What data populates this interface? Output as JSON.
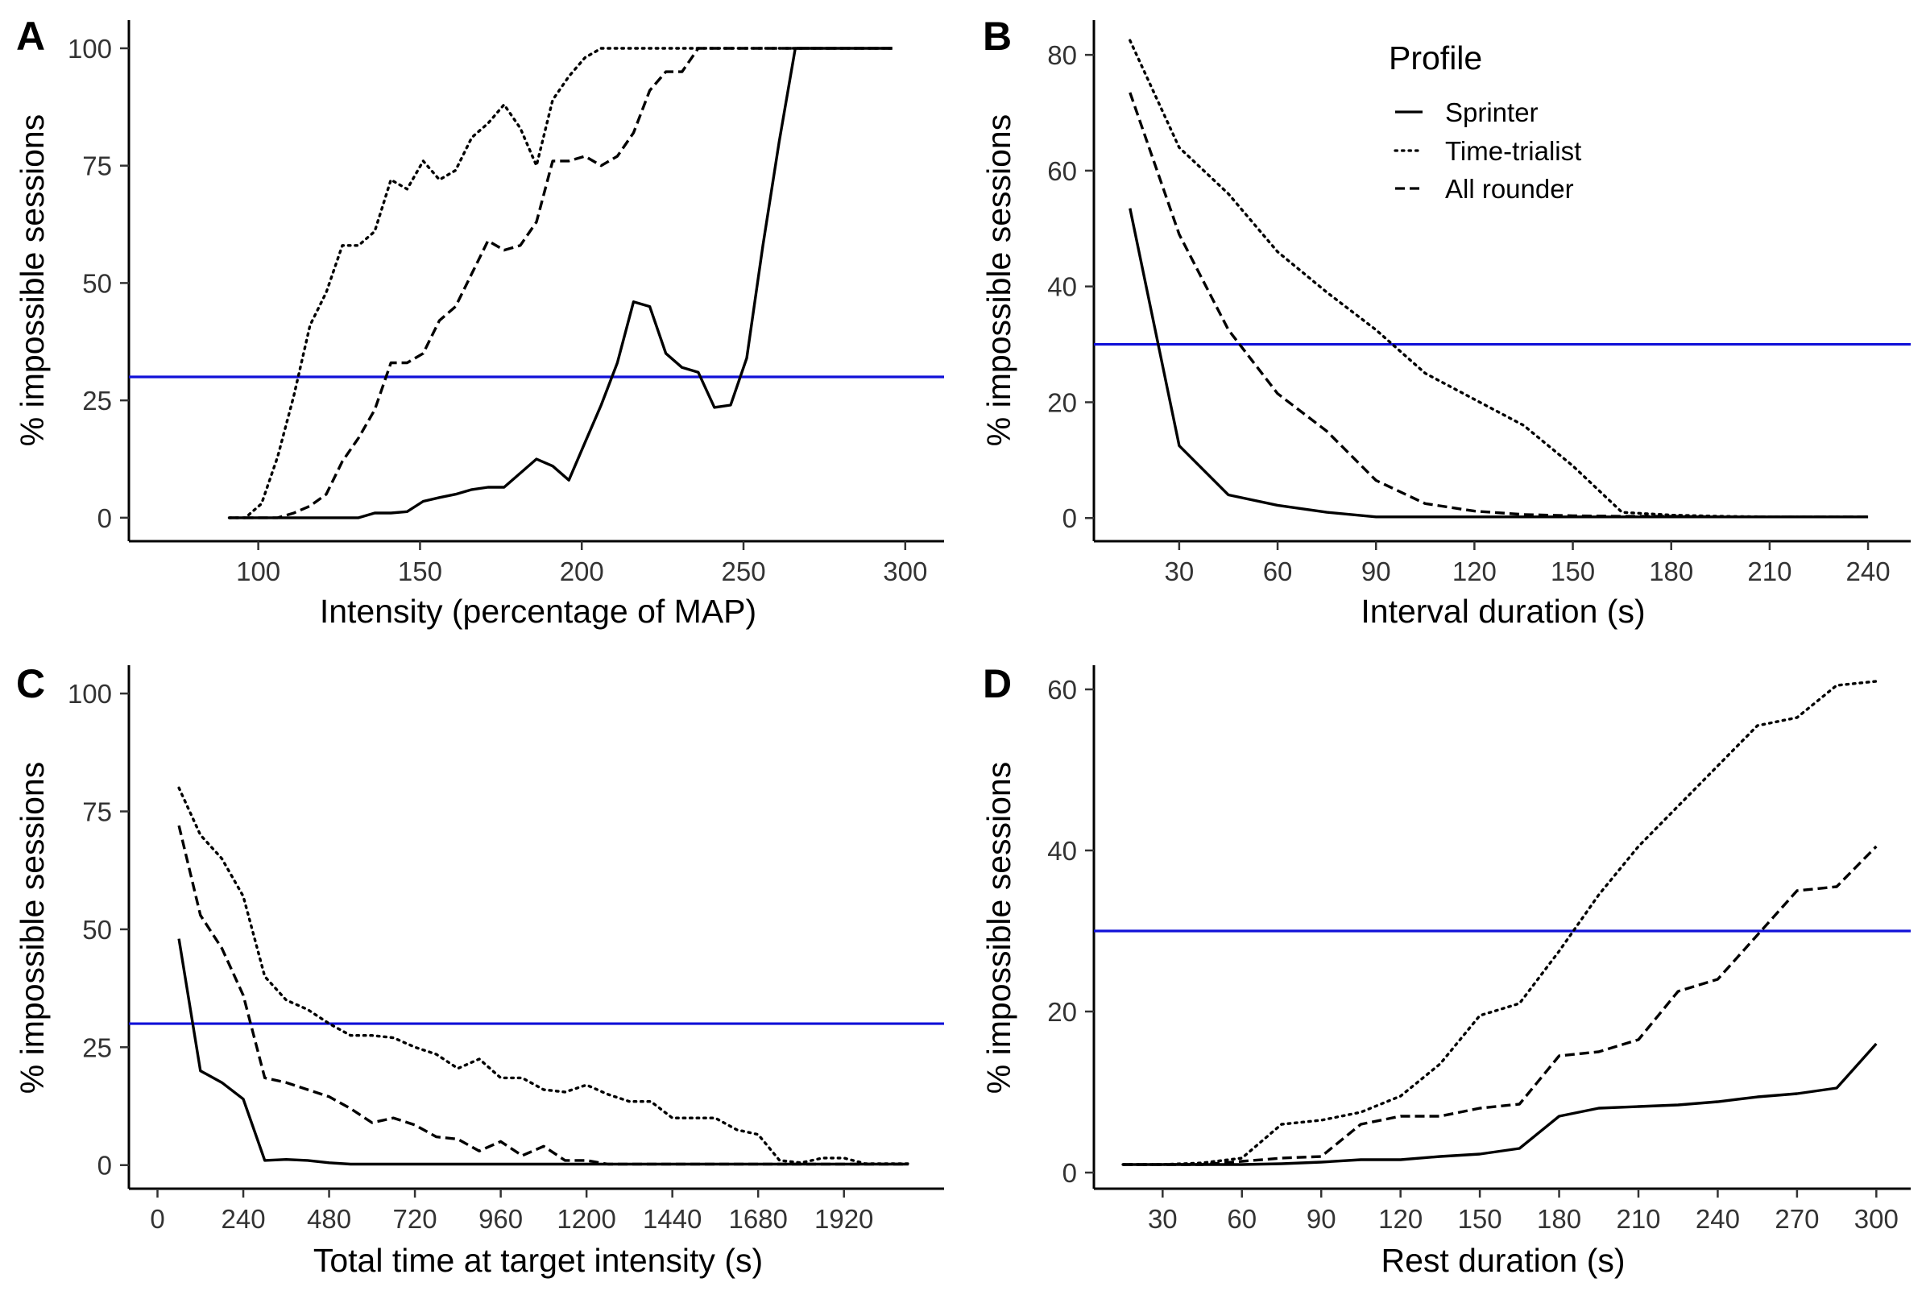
{
  "legend": {
    "title": "Profile",
    "entries": [
      {
        "label": "Sprinter",
        "dash": "solid"
      },
      {
        "label": "Time-trialist",
        "dash": "dotted"
      },
      {
        "label": "All rounder",
        "dash": "dashed"
      }
    ],
    "placement": "inside panel B, top-right"
  },
  "colors": {
    "threshold": "#1010d8",
    "series": "#000000"
  },
  "chart_data": [
    {
      "id": "A",
      "type": "line",
      "panel_label": "A",
      "xlabel": "Intensity (percentage of MAP)",
      "ylabel": "% impossible sessions",
      "xlim": [
        60,
        312
      ],
      "ylim": [
        -5,
        106
      ],
      "xticks": [
        100,
        150,
        200,
        250,
        300
      ],
      "yticks": [
        0,
        25,
        50,
        75,
        100
      ],
      "threshold": 30,
      "series": [
        {
          "name": "Sprinter",
          "dash": "solid",
          "x": [
            91,
            96,
            101,
            106,
            111,
            116,
            121,
            126,
            131,
            136,
            141,
            146,
            151,
            156,
            161,
            166,
            171,
            176,
            181,
            186,
            191,
            196,
            201,
            206,
            211,
            216,
            221,
            226,
            231,
            236,
            241,
            246,
            251,
            256,
            261,
            266,
            271,
            276,
            281,
            286,
            291,
            296
          ],
          "y": [
            0,
            0,
            0,
            0,
            0,
            0,
            0,
            0,
            0,
            1,
            1,
            1.3,
            3.5,
            4.3,
            5,
            6,
            6.5,
            6.5,
            9.5,
            12.5,
            11,
            8,
            16,
            24,
            33,
            46,
            45,
            35,
            32,
            31,
            23.5,
            24,
            34,
            58,
            80,
            100,
            100,
            100,
            100,
            100,
            100,
            100
          ]
        },
        {
          "name": "Time-trialist",
          "dash": "dotted",
          "x": [
            91,
            96,
            101,
            106,
            111,
            116,
            121,
            126,
            131,
            136,
            141,
            146,
            151,
            156,
            161,
            166,
            171,
            176,
            181,
            186,
            191,
            196,
            201,
            206,
            211,
            216,
            221,
            226,
            231,
            236,
            241,
            246,
            251,
            256,
            261,
            266,
            271,
            276,
            281,
            286,
            291,
            296
          ],
          "y": [
            0,
            0,
            3,
            13,
            26,
            41,
            48,
            58,
            58,
            61,
            72,
            70,
            76,
            72,
            74,
            81,
            84,
            88,
            83,
            75,
            89,
            94,
            98,
            100,
            100,
            100,
            100,
            100,
            100,
            100,
            100,
            100,
            100,
            100,
            100,
            100,
            100,
            100,
            100,
            100,
            100,
            100
          ]
        },
        {
          "name": "All rounder",
          "dash": "dashed",
          "x": [
            91,
            96,
            101,
            106,
            111,
            116,
            121,
            126,
            131,
            136,
            141,
            146,
            151,
            156,
            161,
            166,
            171,
            176,
            181,
            186,
            191,
            196,
            201,
            206,
            211,
            216,
            221,
            226,
            231,
            236,
            241,
            246,
            251,
            256,
            261,
            266,
            271,
            276,
            281,
            286,
            291,
            296
          ],
          "y": [
            0,
            0,
            0,
            0,
            1,
            2.5,
            5,
            12,
            17,
            23,
            33,
            33,
            35,
            42,
            45,
            52,
            59,
            57,
            58,
            63,
            76,
            76,
            77,
            75,
            77,
            82,
            91,
            95,
            95,
            100,
            100,
            100,
            100,
            100,
            100,
            100,
            100,
            100,
            100,
            100,
            100,
            100
          ]
        }
      ]
    },
    {
      "id": "B",
      "type": "line",
      "panel_label": "B",
      "xlabel": "Interval duration (s)",
      "ylabel": "% impossible sessions",
      "xlim": [
        4,
        253
      ],
      "ylim": [
        -4,
        86
      ],
      "xticks": [
        30,
        60,
        90,
        120,
        150,
        180,
        210,
        240
      ],
      "yticks": [
        0,
        20,
        40,
        60,
        80
      ],
      "threshold": 30,
      "series": [
        {
          "name": "Sprinter",
          "dash": "solid",
          "x": [
            15,
            30,
            45,
            60,
            75,
            90,
            105,
            120,
            135,
            150,
            165,
            180,
            195,
            210,
            225,
            240
          ],
          "y": [
            53.5,
            12.5,
            4,
            2.2,
            1,
            0.2,
            0.2,
            0.2,
            0.2,
            0.2,
            0.2,
            0.2,
            0.2,
            0.2,
            0.2,
            0.2
          ]
        },
        {
          "name": "Time-trialist",
          "dash": "dotted",
          "x": [
            15,
            30,
            45,
            60,
            75,
            90,
            105,
            120,
            135,
            150,
            165,
            180,
            195,
            210,
            225,
            240
          ],
          "y": [
            82.5,
            64,
            56,
            46,
            39,
            32.5,
            25,
            20.5,
            16,
            9,
            1,
            0.5,
            0.3,
            0.2,
            0.2,
            0.2
          ]
        },
        {
          "name": "All rounder",
          "dash": "dashed",
          "x": [
            15,
            30,
            45,
            60,
            75,
            90,
            105,
            120,
            135,
            150,
            165,
            180,
            195,
            210,
            225,
            240
          ],
          "y": [
            73.5,
            49,
            32.5,
            21.5,
            15,
            6.5,
            2.5,
            1.2,
            0.6,
            0.4,
            0.3,
            0.3,
            0.2,
            0.2,
            0.2,
            0.2
          ]
        }
      ]
    },
    {
      "id": "C",
      "type": "line",
      "panel_label": "C",
      "xlabel": "Total time at target intensity (s)",
      "ylabel": "% impossible sessions",
      "xlim": [
        -80,
        2200
      ],
      "ylim": [
        -5,
        106
      ],
      "xticks": [
        0,
        240,
        480,
        720,
        960,
        1200,
        1440,
        1680,
        1920
      ],
      "yticks": [
        0,
        25,
        50,
        75,
        100
      ],
      "threshold": 30,
      "series": [
        {
          "name": "Sprinter",
          "dash": "solid",
          "x": [
            60,
            120,
            180,
            240,
            300,
            360,
            420,
            480,
            540,
            600,
            660,
            720,
            780,
            840,
            900,
            960,
            1020,
            1080,
            1140,
            1200,
            1260,
            1320,
            1380,
            1440,
            1500,
            1560,
            1620,
            1680,
            1740,
            1800,
            1860,
            1920,
            1980,
            2040,
            2100
          ],
          "y": [
            48,
            20,
            17.5,
            14,
            1,
            1.2,
            1,
            0.5,
            0.2,
            0.2,
            0.2,
            0.2,
            0.2,
            0.2,
            0.2,
            0.2,
            0.2,
            0.2,
            0.2,
            0.2,
            0.2,
            0.2,
            0.2,
            0.2,
            0.2,
            0.2,
            0.2,
            0.2,
            0.2,
            0.2,
            0.2,
            0.2,
            0.2,
            0.2,
            0.2
          ]
        },
        {
          "name": "Time-trialist",
          "dash": "dotted",
          "x": [
            60,
            120,
            180,
            240,
            300,
            360,
            420,
            480,
            540,
            600,
            660,
            720,
            780,
            840,
            900,
            960,
            1020,
            1080,
            1140,
            1200,
            1260,
            1320,
            1380,
            1440,
            1500,
            1560,
            1620,
            1680,
            1740,
            1800,
            1860,
            1920,
            1980,
            2040,
            2100
          ],
          "y": [
            80,
            70,
            65,
            57,
            40,
            35,
            33,
            30,
            27.5,
            27.5,
            27,
            25,
            23.5,
            20.5,
            22.5,
            18.5,
            18.5,
            16,
            15.5,
            17,
            15,
            13.5,
            13.5,
            10,
            10,
            10,
            7.5,
            6.5,
            1,
            0.5,
            1.5,
            1.5,
            0.3,
            0.3,
            0.3
          ]
        },
        {
          "name": "All rounder",
          "dash": "dashed",
          "x": [
            60,
            120,
            180,
            240,
            300,
            360,
            420,
            480,
            540,
            600,
            660,
            720,
            780,
            840,
            900,
            960,
            1020,
            1080,
            1140,
            1200,
            1260,
            1320,
            1380,
            1440,
            1500,
            1560,
            1620,
            1680,
            1740,
            1800,
            1860,
            1920,
            1980,
            2040,
            2100
          ],
          "y": [
            72,
            53,
            46,
            36,
            18.5,
            17.5,
            16,
            14.5,
            12,
            9,
            10,
            8.5,
            6,
            5.5,
            3,
            5,
            2,
            4,
            1,
            1,
            0.2,
            0.2,
            0.2,
            0.2,
            0.2,
            0.2,
            0.2,
            0.2,
            0.2,
            0.2,
            0.2,
            0.2,
            0.2,
            0.2,
            0.2
          ]
        }
      ]
    },
    {
      "id": "D",
      "type": "line",
      "panel_label": "D",
      "xlabel": "Rest duration (s)",
      "ylabel": "% impossible sessions",
      "xlim": [
        4,
        313
      ],
      "ylim": [
        -2,
        63
      ],
      "xticks": [
        30,
        60,
        90,
        120,
        150,
        180,
        210,
        240,
        270,
        300
      ],
      "yticks": [
        0,
        20,
        40,
        60
      ],
      "threshold": 30,
      "series": [
        {
          "name": "Sprinter",
          "dash": "solid",
          "x": [
            15,
            30,
            45,
            60,
            75,
            90,
            105,
            120,
            135,
            150,
            165,
            180,
            195,
            210,
            225,
            240,
            255,
            270,
            285,
            300
          ],
          "y": [
            1,
            1,
            1,
            1,
            1.1,
            1.3,
            1.6,
            1.6,
            2,
            2.3,
            3,
            7,
            8,
            8.2,
            8.4,
            8.8,
            9.4,
            9.8,
            10.5,
            16
          ]
        },
        {
          "name": "Time-trialist",
          "dash": "dotted",
          "x": [
            15,
            30,
            45,
            60,
            75,
            90,
            105,
            120,
            135,
            150,
            165,
            180,
            195,
            210,
            225,
            240,
            255,
            270,
            285,
            300
          ],
          "y": [
            1,
            1,
            1.2,
            1.8,
            6,
            6.5,
            7.5,
            9.5,
            13.5,
            19.5,
            21,
            27.5,
            34.5,
            40.5,
            45.5,
            50.5,
            55.5,
            56.5,
            60.5,
            61
          ]
        },
        {
          "name": "All rounder",
          "dash": "dashed",
          "x": [
            15,
            30,
            45,
            60,
            75,
            90,
            105,
            120,
            135,
            150,
            165,
            180,
            195,
            210,
            225,
            240,
            255,
            270,
            285,
            300
          ],
          "y": [
            1,
            1,
            1,
            1.4,
            1.8,
            2,
            6,
            7,
            7,
            8,
            8.5,
            14.5,
            15,
            16.5,
            22.5,
            24,
            29.5,
            35,
            35.5,
            40.5
          ]
        }
      ]
    }
  ]
}
